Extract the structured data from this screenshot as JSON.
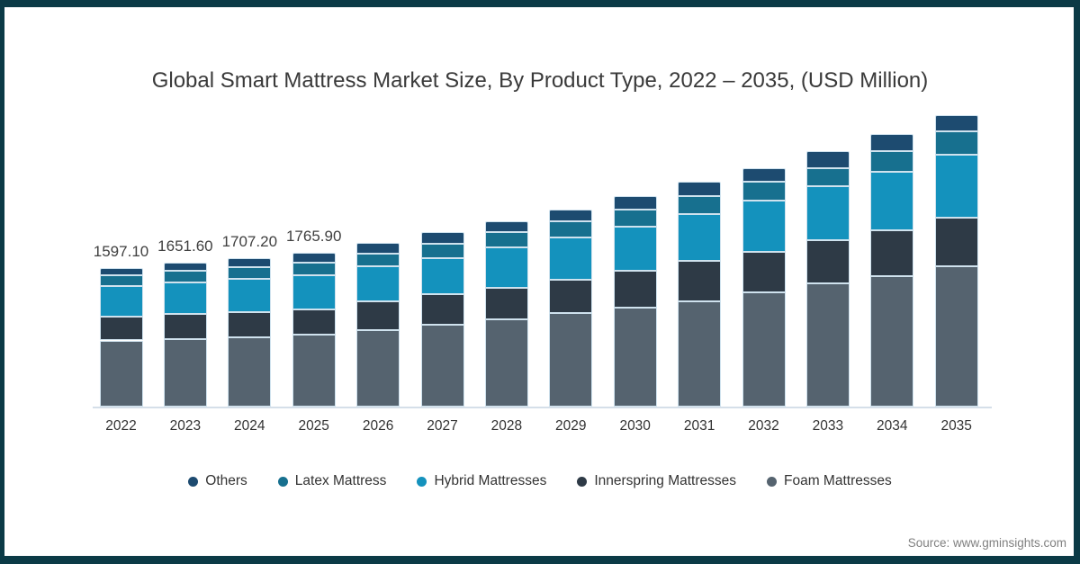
{
  "title": "Global Smart Mattress Market Size, By Product Type, 2022 – 2035, (USD Million)",
  "source": "Source: www.gminsights.com",
  "colors": {
    "frame": "#0b3a46",
    "others": "#1d4b70",
    "latex": "#17708f",
    "hybrid": "#1492bd",
    "innerspring": "#2e3a46",
    "foam": "#55636f",
    "axis_line": "#d5dfe9",
    "segment_stroke": "#cfe2ee"
  },
  "chart_data": {
    "type": "bar",
    "stacked": true,
    "title": "Global Smart Mattress Market Size, By Product Type, 2022 – 2035, (USD Million)",
    "xlabel": "",
    "ylabel": "USD Million",
    "grid": false,
    "legend_position": "bottom",
    "categories": [
      "2022",
      "2023",
      "2024",
      "2025",
      "2026",
      "2027",
      "2028",
      "2029",
      "2030",
      "2031",
      "2032",
      "2033",
      "2034",
      "2035"
    ],
    "series": [
      {
        "key": "foam",
        "name": "Foam Mattresses",
        "color": "#55636f",
        "values": [
          760,
          775,
          800,
          828,
          875,
          940,
          1000,
          1072,
          1134,
          1210,
          1313,
          1417,
          1502,
          1616
        ]
      },
      {
        "key": "innerspring",
        "name": "Innerspring Mattresses",
        "color": "#2e3a46",
        "values": [
          270,
          285,
          288,
          292,
          340,
          355,
          362,
          386,
          427,
          465,
          465,
          499,
          524,
          558
        ]
      },
      {
        "key": "hybrid",
        "name": "Hybrid Mattresses",
        "color": "#1492bd",
        "values": [
          352,
          370,
          382,
          385,
          400,
          415,
          472,
          483,
          510,
          541,
          593,
          614,
          672,
          724
        ]
      },
      {
        "key": "latex",
        "name": "Latex Mattress",
        "color": "#17708f",
        "values": [
          132,
          130,
          137,
          148,
          145,
          162,
          172,
          189,
          196,
          207,
          217,
          213,
          235,
          266
        ]
      },
      {
        "key": "others",
        "name": "Others",
        "color": "#1d4b70",
        "values": [
          83.1,
          91.6,
          100.2,
          112.9,
          120,
          130,
          125,
          138,
          149,
          159,
          155,
          190,
          200,
          186
        ]
      }
    ],
    "totals": [
      1597.1,
      1651.6,
      1707.2,
      1765.9,
      1880,
      2002,
      2131,
      2268,
      2416,
      2582,
      2743,
      2933,
      3133,
      3350
    ],
    "total_labels": [
      "1597.10",
      "1651.60",
      "1707.20",
      "1765.90",
      "",
      "",
      "",
      "",
      "",
      "",
      "",
      "",
      "",
      ""
    ],
    "legend_order": [
      "Others",
      "Latex Mattress",
      "Hybrid Mattresses",
      "Innerspring Mattresses",
      "Foam Mattresses"
    ]
  }
}
